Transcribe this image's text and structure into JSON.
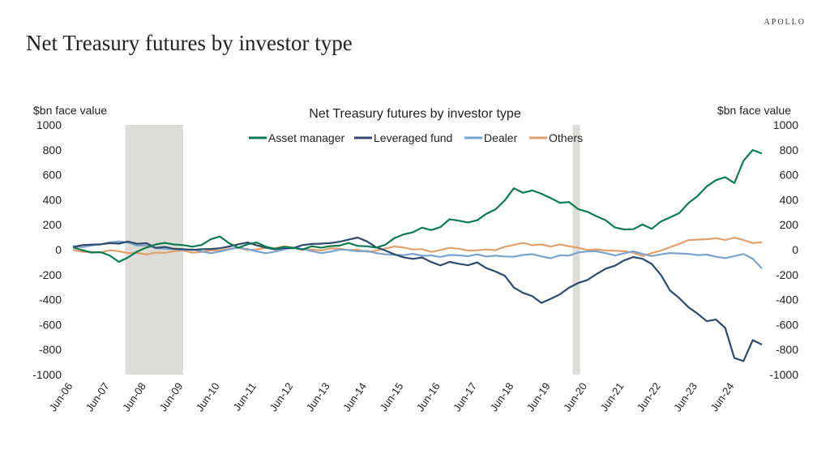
{
  "page_title": "Net Treasury futures by investor type",
  "brand": "APOLLO",
  "chart_data": {
    "type": "line",
    "title": "Net Treasury futures by investor type",
    "ylabel_left": "$bn face value",
    "ylabel_right": "$bn face value",
    "ylim": [
      -1000,
      1000
    ],
    "yticks": [
      1000,
      800,
      600,
      400,
      200,
      0,
      -200,
      -400,
      -600,
      -800,
      -1000
    ],
    "xlim": [
      2006.5,
      2025.25
    ],
    "xtick_labels": [
      "Jun-06",
      "Jun-07",
      "Jun-08",
      "Jun-09",
      "Jun-10",
      "Jun-11",
      "Jun-12",
      "Jun-13",
      "Jun-14",
      "Jun-15",
      "Jun-16",
      "Jun-17",
      "Jun-18",
      "Jun-19",
      "Jun-20",
      "Jun-21",
      "Jun-22",
      "Jun-23",
      "Jun-24"
    ],
    "legend_position": "top-center",
    "recessions": [
      [
        2007.92,
        2009.5
      ],
      [
        2020.1,
        2020.3
      ]
    ],
    "x": [
      2006.5,
      2006.75,
      2007,
      2007.25,
      2007.5,
      2007.75,
      2008,
      2008.25,
      2008.5,
      2008.75,
      2009,
      2009.25,
      2009.5,
      2009.75,
      2010,
      2010.25,
      2010.5,
      2010.75,
      2011,
      2011.25,
      2011.5,
      2011.75,
      2012,
      2012.25,
      2012.5,
      2012.75,
      2013,
      2013.25,
      2013.5,
      2013.75,
      2014,
      2014.25,
      2014.5,
      2014.75,
      2015,
      2015.25,
      2015.5,
      2015.75,
      2016,
      2016.25,
      2016.5,
      2016.75,
      2017,
      2017.25,
      2017.5,
      2017.75,
      2018,
      2018.25,
      2018.5,
      2018.75,
      2019,
      2019.25,
      2019.5,
      2019.75,
      2020,
      2020.25,
      2020.5,
      2020.75,
      2021,
      2021.25,
      2021.5,
      2021.75,
      2022,
      2022.25,
      2022.5,
      2022.75,
      2023,
      2023.25,
      2023.5,
      2023.75,
      2024,
      2024.25,
      2024.5,
      2024.75,
      2025,
      2025.25
    ],
    "series": [
      {
        "name": "Asset manager",
        "color": "#0e7a4f",
        "values": [
          20,
          -10,
          -30,
          -20,
          -40,
          -90,
          -60,
          -20,
          10,
          40,
          60,
          50,
          40,
          20,
          30,
          80,
          110,
          60,
          20,
          40,
          50,
          20,
          10,
          30,
          20,
          0,
          20,
          10,
          30,
          40,
          60,
          30,
          20,
          10,
          40,
          100,
          130,
          140,
          170,
          150,
          180,
          250,
          240,
          220,
          230,
          280,
          320,
          400,
          500,
          460,
          470,
          440,
          410,
          380,
          390,
          330,
          300,
          260,
          230,
          180,
          170,
          170,
          200,
          160,
          220,
          260,
          300,
          380,
          430,
          500,
          550,
          580,
          540,
          720,
          800,
          770
        ]
      },
      {
        "name": "Leveraged fund",
        "color": "#2f4a6b",
        "values": [
          20,
          30,
          40,
          50,
          60,
          50,
          60,
          40,
          50,
          20,
          30,
          10,
          0,
          -10,
          0,
          10,
          20,
          30,
          40,
          50,
          30,
          20,
          10,
          20,
          10,
          30,
          40,
          50,
          60,
          70,
          80,
          90,
          60,
          20,
          0,
          -30,
          -60,
          -80,
          -70,
          -100,
          -120,
          -90,
          -110,
          -130,
          -110,
          -150,
          -170,
          -200,
          -300,
          -350,
          -380,
          -430,
          -390,
          -350,
          -300,
          -270,
          -250,
          -200,
          -150,
          -120,
          -80,
          -60,
          -80,
          -120,
          -200,
          -320,
          -380,
          -460,
          -520,
          -580,
          -560,
          -620,
          -860,
          -890,
          -730,
          -760
        ]
      },
      {
        "name": "Dealer",
        "color": "#7ca3cc",
        "values": [
          30,
          20,
          40,
          50,
          60,
          60,
          50,
          30,
          40,
          20,
          10,
          0,
          -10,
          0,
          -10,
          -20,
          -10,
          0,
          10,
          0,
          -10,
          -20,
          -10,
          0,
          10,
          0,
          -10,
          -20,
          -10,
          0,
          -10,
          -20,
          -10,
          -20,
          -30,
          -40,
          -50,
          -40,
          -50,
          -40,
          -50,
          -40,
          -50,
          -60,
          -40,
          -50,
          -40,
          -50,
          -60,
          -50,
          -40,
          -50,
          -60,
          -40,
          -50,
          -30,
          -20,
          -10,
          -20,
          -40,
          -30,
          -20,
          -40,
          -50,
          -30,
          -20,
          -30,
          -40,
          -50,
          -40,
          -50,
          -60,
          -50,
          -40,
          -80,
          -150
        ]
      },
      {
        "name": "Others",
        "color": "#e0a06c",
        "values": [
          0,
          -10,
          -10,
          -20,
          -10,
          -20,
          -30,
          -20,
          -30,
          -20,
          -30,
          -20,
          -10,
          -20,
          -10,
          0,
          -10,
          0,
          10,
          0,
          10,
          20,
          10,
          20,
          10,
          0,
          10,
          0,
          10,
          0,
          -10,
          0,
          -10,
          0,
          10,
          20,
          10,
          0,
          10,
          -10,
          0,
          10,
          0,
          -10,
          0,
          10,
          0,
          20,
          30,
          50,
          40,
          50,
          30,
          40,
          20,
          10,
          0,
          10,
          0,
          -10,
          -20,
          -30,
          -50,
          -20,
          0,
          20,
          40,
          70,
          80,
          90,
          100,
          80,
          90,
          70,
          50,
          60
        ]
      }
    ]
  }
}
